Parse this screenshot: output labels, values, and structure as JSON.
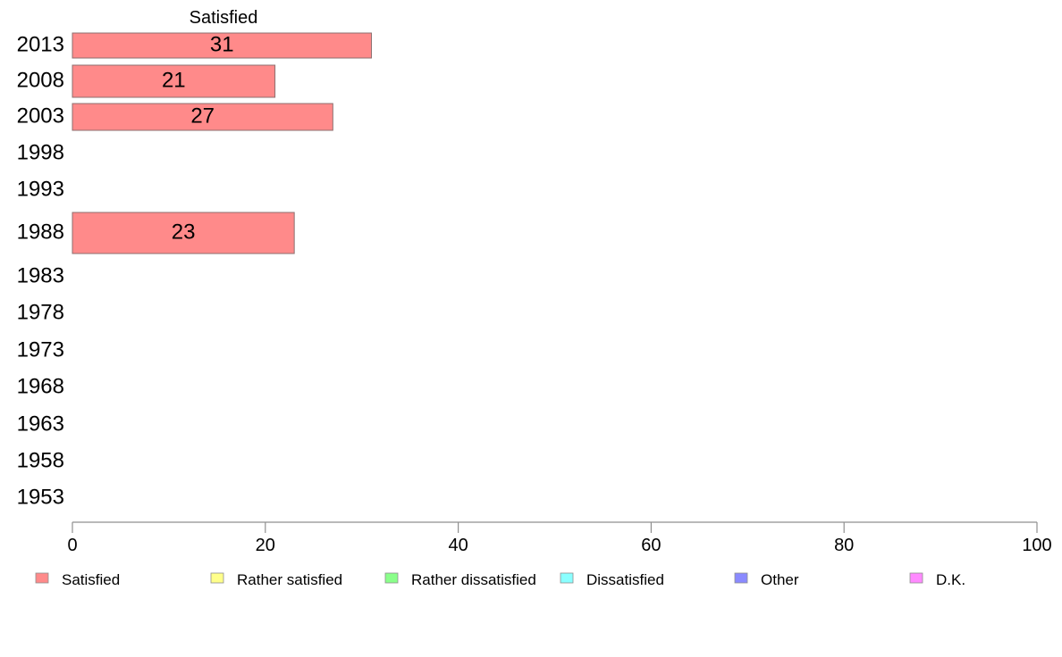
{
  "chart_data": {
    "type": "bar",
    "orientation": "horizontal",
    "title": "Satisfied",
    "categories": [
      "2013",
      "2008",
      "2003",
      "1998",
      "1993",
      "1988",
      "1983",
      "1978",
      "1973",
      "1968",
      "1963",
      "1958",
      "1953"
    ],
    "series": [
      {
        "name": "Satisfied",
        "color": "#ff8a8a",
        "values": [
          31,
          21,
          27,
          null,
          null,
          23,
          null,
          null,
          null,
          null,
          null,
          null,
          null
        ]
      }
    ],
    "xlim": [
      0,
      100
    ],
    "xticks": [
      0,
      20,
      40,
      60,
      80,
      100
    ],
    "legend": {
      "placement": "bottom",
      "items": [
        {
          "label": "Satisfied",
          "color": "#ff8a8a"
        },
        {
          "label": "Rather satisfied",
          "color": "#ffff8a"
        },
        {
          "label": "Rather dissatisfied",
          "color": "#8aff8a"
        },
        {
          "label": "Dissatisfied",
          "color": "#8affff"
        },
        {
          "label": "Other",
          "color": "#8a8aff"
        },
        {
          "label": "D.K.",
          "color": "#ff8aff"
        }
      ]
    },
    "grid": false
  }
}
